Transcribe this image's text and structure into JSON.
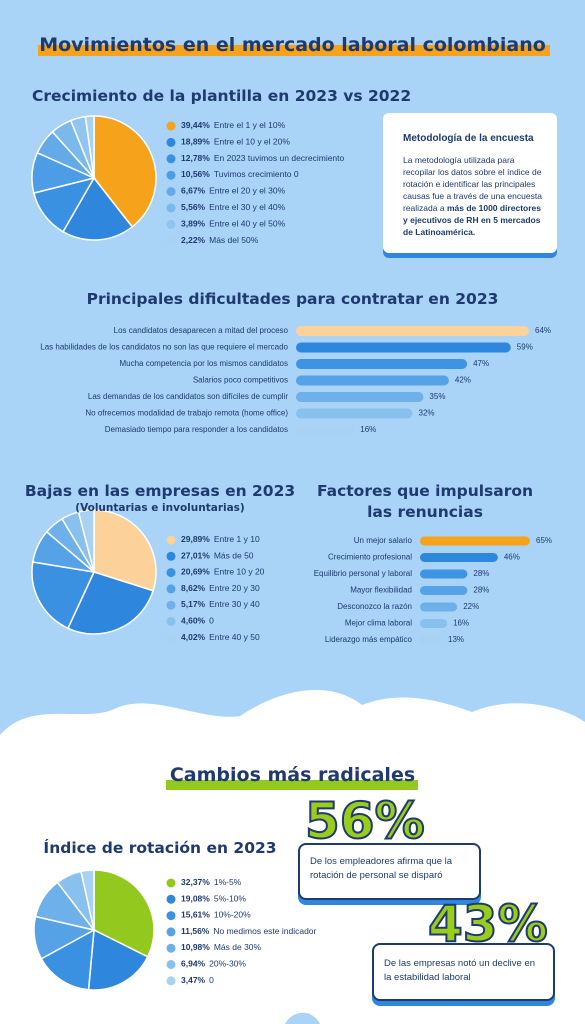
{
  "header": {
    "title": "Movimientos en el mercado laboral colombiano"
  },
  "methodology": {
    "title": "Metodología de la encuesta",
    "text": "La metodología utilizada para recopilar los datos sobre el índice de rotación e identificar las principales causas fue a través de una encuesta realizada a ",
    "text_bold": "más de 1000 directores y ejecutivos de RH en 5 mercados de Latinoamérica."
  },
  "section2": {
    "title": "Cambios más radicales"
  },
  "stats": [
    {
      "label": "56%",
      "text": "De los empleadores afirma que la rotación de personal se disparó"
    },
    {
      "label": "43%",
      "text": "De las empresas notó un declive en la estabilidad laboral"
    }
  ],
  "chart_data": [
    {
      "type": "pie",
      "title": "Crecimiento de la plantilla en 2023 vs 2022",
      "categories": [
        "Entre el 1 y el 10%",
        "Entre el 10 y el 20%",
        "En 2023 tuvimos un decrecimiento",
        "Tuvimos crecimiento 0",
        "Entre el 20 y el 30%",
        "Entre el 30 y el 40%",
        "Entre el 40 y el 50%",
        "Más del 50%"
      ],
      "values": [
        39.44,
        18.89,
        12.78,
        10.56,
        6.67,
        5.56,
        3.89,
        2.22
      ],
      "value_labels": [
        "39,44%",
        "18,89%",
        "12,78%",
        "10,56%",
        "6,67%",
        "5,56%",
        "3,89%",
        "2,22%"
      ],
      "colors": [
        "#f7a21b",
        "#2f86dd",
        "#3a91e2",
        "#4d9de6",
        "#64aae8",
        "#7bb8eb",
        "#91c4ee",
        "#a8d1f2"
      ]
    },
    {
      "type": "bar",
      "title": "Principales dificultades para contratar en 2023",
      "categories": [
        "Los candidatos desaparecen a mitad del proceso",
        "Las habilidades de los candidatos no son las que requiere el mercado",
        "Mucha competencia por los mismos candidatos",
        "Salarios poco competitivos",
        "Las demandas de los candidatos son difíciles de cumplir",
        "No ofrecemos modalidad de trabajo remota (home office)",
        "Demasiado tiempo para responder a los candidatos"
      ],
      "values": [
        64,
        59,
        47,
        42,
        35,
        32,
        16
      ],
      "value_labels": [
        "64%",
        "59%",
        "47%",
        "42%",
        "35%",
        "32%",
        "16%"
      ],
      "colors": [
        "#fdd29a",
        "#2f86dd",
        "#3e93e2",
        "#55a2e7",
        "#6db0ea",
        "#88c0ee",
        "#a8d1f2"
      ]
    },
    {
      "type": "pie",
      "title": "Bajas en las empresas en 2023",
      "subtitle": "(Voluntarias e involuntarias)",
      "categories": [
        "Entre 1 y 10",
        "Más de 50",
        "Entre 10 y 20",
        "Entre 20 y 30",
        "Entre 30 y 40",
        "0",
        "Entre 40 y 50"
      ],
      "values": [
        29.89,
        27.01,
        20.69,
        8.62,
        5.17,
        4.6,
        4.02
      ],
      "value_labels": [
        "29,89%",
        "27,01%",
        "20,69%",
        "8,62%",
        "5,17%",
        "4,60%",
        "4,02%"
      ],
      "colors": [
        "#fdd29a",
        "#2f86dd",
        "#3a91e2",
        "#55a2e7",
        "#6db0ea",
        "#88c0ee",
        "#a8d1f2"
      ]
    },
    {
      "type": "bar",
      "title": "Factores que impulsaron las renuncias",
      "categories": [
        "Un mejor salario",
        "Crecimiento profesional",
        "Equilibrio personal y laboral",
        "Mayor flexibilidad",
        "Desconozco la razón",
        "Mejor clima laboral",
        "Liderazgo más empático"
      ],
      "values": [
        65,
        46,
        28,
        28,
        22,
        16,
        13
      ],
      "value_labels": [
        "65%",
        "46%",
        "28%",
        "28%",
        "22%",
        "16%",
        "13%"
      ],
      "colors": [
        "#f7a21b",
        "#2f86dd",
        "#3e93e2",
        "#55a2e7",
        "#6db0ea",
        "#88c0ee",
        "#a8d1f2"
      ]
    },
    {
      "type": "pie",
      "title": "Índice de rotación en 2023",
      "categories": [
        "1%-5%",
        "5%-10%",
        "10%-20%",
        "No medimos este indicador",
        "Más de 30%",
        "20%-30%",
        "0"
      ],
      "values": [
        32.37,
        19.08,
        15.61,
        11.56,
        10.98,
        6.94,
        3.47
      ],
      "value_labels": [
        "32,37%",
        "19,08%",
        "15,61%",
        "11,56%",
        "10,98%",
        "6,94%",
        "3,47%"
      ],
      "colors": [
        "#93c81f",
        "#2f86dd",
        "#3a91e2",
        "#55a2e7",
        "#6db0ea",
        "#88c0ee",
        "#a8d1f2"
      ]
    }
  ]
}
